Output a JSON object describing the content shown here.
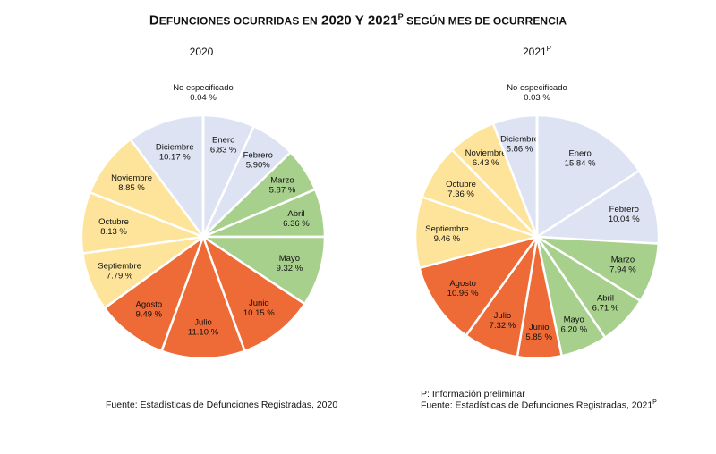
{
  "title": {
    "prefix_big": "D",
    "prefix_small": "EFUNCIONES OCURRIDAS EN",
    "years": " 2020 Y 2021",
    "sup": "P",
    "suffix": " SEGÚN MES DE OCURRENCIA"
  },
  "colors": {
    "winter": "#dde3f3",
    "spring": "#a8d08d",
    "summer": "#ee6a36",
    "autumn": "#fde49a"
  },
  "chart_data": [
    {
      "type": "pie",
      "title": "2020",
      "title_sup": "",
      "slices": [
        {
          "label": "Enero",
          "value": 6.83,
          "value_text": "6.83 %",
          "season": "winter"
        },
        {
          "label": "Febrero",
          "value": 5.9,
          "value_text": "5.90%",
          "season": "winter"
        },
        {
          "label": "Marzo",
          "value": 5.87,
          "value_text": "5.87 %",
          "season": "spring"
        },
        {
          "label": "Abril",
          "value": 6.36,
          "value_text": "6.36 %",
          "season": "spring"
        },
        {
          "label": "Mayo",
          "value": 9.32,
          "value_text": "9.32 %",
          "season": "spring"
        },
        {
          "label": "Junio",
          "value": 10.15,
          "value_text": "10.15 %",
          "season": "summer"
        },
        {
          "label": "Julio",
          "value": 11.1,
          "value_text": "11.10 %",
          "season": "summer"
        },
        {
          "label": "Agosto",
          "value": 9.49,
          "value_text": "9.49 %",
          "season": "summer"
        },
        {
          "label": "Septiembre",
          "value": 7.79,
          "value_text": "7.79 %",
          "season": "autumn"
        },
        {
          "label": "Octubre",
          "value": 8.13,
          "value_text": "8.13 %",
          "season": "autumn"
        },
        {
          "label": "Noviembre",
          "value": 8.85,
          "value_text": "8.85 %",
          "season": "autumn"
        },
        {
          "label": "Diciembre",
          "value": 10.17,
          "value_text": "10.17 %",
          "season": "winter"
        },
        {
          "label": "No especificado",
          "value": 0.04,
          "value_text": "0.04 %",
          "season": "winter"
        }
      ]
    },
    {
      "type": "pie",
      "title": "2021",
      "title_sup": "P",
      "slices": [
        {
          "label": "Enero",
          "value": 15.84,
          "value_text": "15.84 %",
          "season": "winter"
        },
        {
          "label": "Febrero",
          "value": 10.04,
          "value_text": "10.04 %",
          "season": "winter"
        },
        {
          "label": "Marzo",
          "value": 7.94,
          "value_text": "7.94 %",
          "season": "spring"
        },
        {
          "label": "Abril",
          "value": 6.71,
          "value_text": "6.71 %",
          "season": "spring"
        },
        {
          "label": "Mayo",
          "value": 6.2,
          "value_text": "6.20 %",
          "season": "spring"
        },
        {
          "label": "Junio",
          "value": 5.85,
          "value_text": "5.85 %",
          "season": "summer"
        },
        {
          "label": "Julio",
          "value": 7.32,
          "value_text": "7.32 %",
          "season": "summer"
        },
        {
          "label": "Agosto",
          "value": 10.96,
          "value_text": "10.96 %",
          "season": "summer"
        },
        {
          "label": "Septiembre",
          "value": 9.46,
          "value_text": "9.46 %",
          "season": "autumn"
        },
        {
          "label": "Octubre",
          "value": 7.36,
          "value_text": "7.36 %",
          "season": "autumn"
        },
        {
          "label": "Noviembre",
          "value": 6.43,
          "value_text": "6.43 %",
          "season": "autumn"
        },
        {
          "label": "Diciembre",
          "value": 5.86,
          "value_text": "5.86 %",
          "season": "winter"
        },
        {
          "label": "No especificado",
          "value": 0.03,
          "value_text": "0.03 %",
          "season": "winter"
        }
      ]
    }
  ],
  "footer": {
    "source_2020": "Fuente: Estadísticas de Defunciones Registradas, 2020",
    "note_2021": "P: Información preliminar",
    "source_2021": "Fuente: Estadísticas de Defunciones Registradas, 2021",
    "source_2021_sup": "P"
  }
}
